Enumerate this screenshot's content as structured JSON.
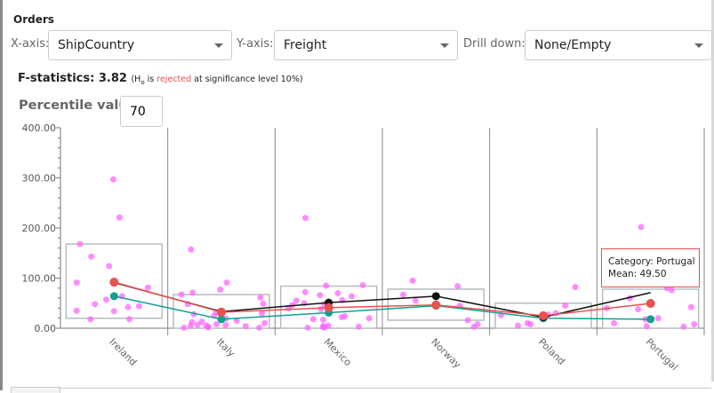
{
  "panel": {
    "title": "Orders"
  },
  "controls": {
    "x_axis_label": "X-axis:",
    "x_axis_value": "ShipCountry",
    "y_axis_label": "Y-axis:",
    "y_axis_value": "Freight",
    "drill_label": "Drill down:",
    "drill_value": "None/Empty"
  },
  "stats": {
    "f_label": "F-statistics:",
    "f_value": "3.82",
    "note_prefix": "(H",
    "note_sub": "o",
    "note_is": " is ",
    "note_rejected": "rejected",
    "note_suffix": " at significance level 10%)"
  },
  "percentile": {
    "label": "Percentile value:",
    "value": "70"
  },
  "tooltip": {
    "line1": "Category: Portugal",
    "line2": "Mean: 49.50"
  },
  "colors": {
    "points": "#ff66ff",
    "mean": "#e8524f",
    "percentile": "#111111",
    "median": "#12a090",
    "box": "#b5bcc2"
  },
  "chart_data": {
    "type": "scatter",
    "categories": [
      "Ireland",
      "Italy",
      "Mexico",
      "Norway",
      "Poland",
      "Portugal"
    ],
    "ylim": [
      0,
      400
    ],
    "yticks": [
      "0.00",
      "100.00",
      "200.00",
      "300.00",
      "400.00"
    ],
    "grid": "vertical category separators",
    "points": [
      [
        297,
        221,
        168,
        143,
        124,
        92,
        91,
        81,
        64,
        57,
        48,
        44,
        42,
        35,
        34,
        18,
        18
      ],
      [
        157,
        91,
        77,
        71,
        67,
        61,
        49,
        48,
        32,
        30,
        28,
        25,
        19,
        15,
        13,
        12,
        10,
        8,
        7,
        6,
        5,
        5,
        4,
        3,
        2,
        1,
        1
      ],
      [
        220,
        86,
        85,
        72,
        70,
        66,
        64,
        56,
        55,
        50,
        48,
        46,
        40,
        38,
        24,
        22,
        20,
        18,
        17,
        5,
        4,
        3,
        2,
        2,
        1
      ],
      [
        95,
        84,
        67,
        55,
        45,
        16,
        8,
        3
      ],
      [
        82,
        45,
        30,
        27,
        26,
        10,
        8,
        5
      ],
      [
        202,
        80,
        76,
        60,
        42,
        40,
        38,
        20,
        18,
        10,
        8,
        4,
        3
      ]
    ],
    "boxes": [
      [
        20,
        168
      ],
      [
        0,
        67
      ],
      [
        0,
        84
      ],
      [
        16,
        78
      ],
      [
        0,
        50
      ],
      [
        0,
        78
      ]
    ],
    "series": [
      {
        "key": "mean",
        "values": [
          92,
          32,
          41,
          46.5,
          25,
          49.5
        ]
      },
      {
        "key": "percentile",
        "values": [
          91,
          33,
          51,
          64,
          22,
          71
        ]
      },
      {
        "key": "median",
        "values": [
          64,
          18,
          31,
          45,
          20,
          18
        ]
      }
    ]
  }
}
